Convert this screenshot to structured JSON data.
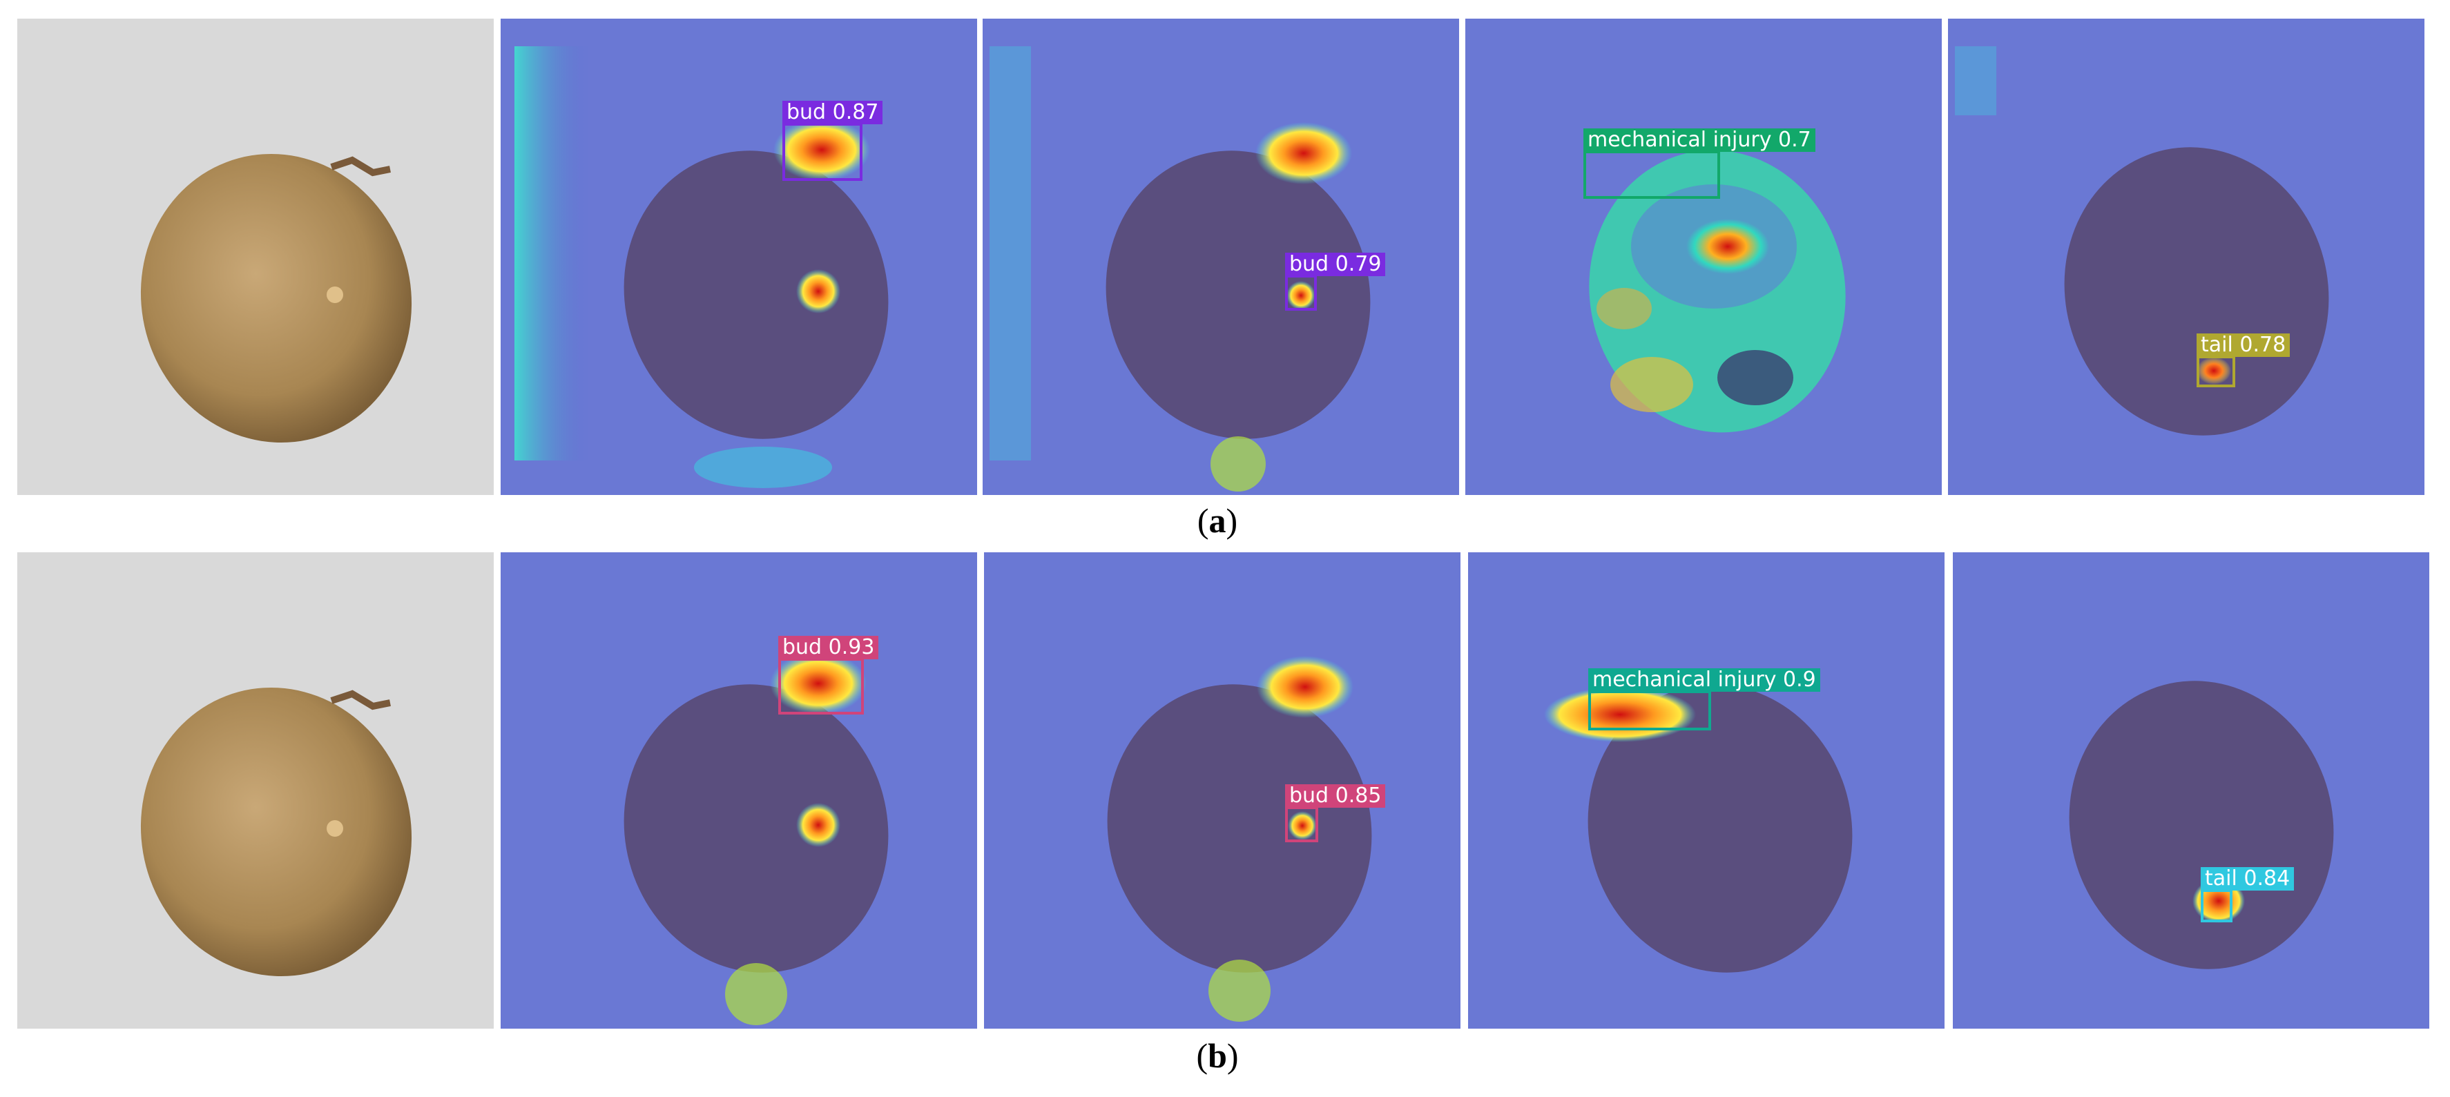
{
  "figure": {
    "rows": [
      {
        "id": "a",
        "caption_open": "(",
        "caption_letter": "a",
        "caption_close": ")",
        "detections": [
          {
            "panel": 2,
            "label": "bud",
            "score": "0.87",
            "color": "#7a2be0"
          },
          {
            "panel": 3,
            "label": "bud",
            "score": "0.79",
            "color": "#7a2be0"
          },
          {
            "panel": 4,
            "label": "mechanical injury",
            "score": "0.7",
            "color": "#12a86a"
          },
          {
            "panel": 5,
            "label": "tail",
            "score": "0.78",
            "color": "#b0a830"
          }
        ]
      },
      {
        "id": "b",
        "caption_open": "(",
        "caption_letter": "b",
        "caption_close": ")",
        "detections": [
          {
            "panel": 2,
            "label": "bud",
            "score": "0.93",
            "color": "#d0447a"
          },
          {
            "panel": 3,
            "label": "bud",
            "score": "0.85",
            "color": "#d0447a"
          },
          {
            "panel": 4,
            "label": "mechanical injury",
            "score": "0.9",
            "color": "#0fa890"
          },
          {
            "panel": 5,
            "label": "tail",
            "score": "0.84",
            "color": "#2fc8e0"
          }
        ]
      }
    ]
  }
}
